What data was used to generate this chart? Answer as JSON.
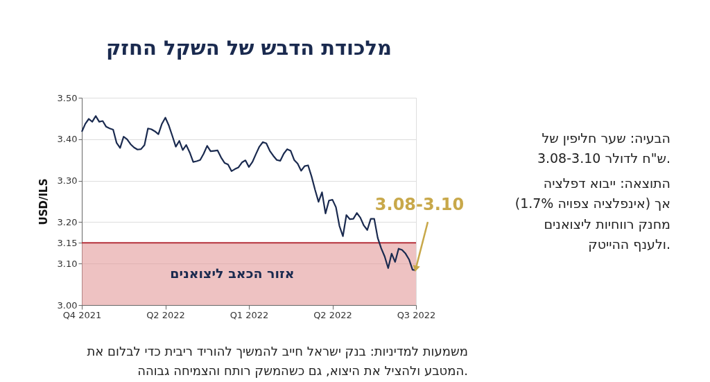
{
  "chart_data": {
    "type": "line",
    "title": "מלכודת הדבש של השקל החזק",
    "ylabel": "USD/ILS",
    "categories": [
      "Q4 2021",
      null,
      null,
      null,
      null,
      null,
      null,
      null,
      null,
      null,
      null,
      null,
      null,
      null,
      null,
      null,
      null,
      null,
      null,
      null,
      null,
      null,
      null,
      null,
      "Q2 2022",
      null,
      null,
      null,
      null,
      null,
      null,
      null,
      null,
      null,
      null,
      null,
      null,
      null,
      null,
      null,
      null,
      null,
      null,
      null,
      null,
      null,
      null,
      null,
      "Q1 2022",
      null,
      null,
      null,
      null,
      null,
      null,
      null,
      null,
      null,
      null,
      null,
      null,
      null,
      null,
      null,
      null,
      null,
      null,
      null,
      null,
      null,
      null,
      null,
      "Q2 2022",
      null,
      null,
      null,
      null,
      null,
      null,
      null,
      null,
      null,
      null,
      null,
      null,
      null,
      null,
      null,
      null,
      null,
      null,
      null,
      null,
      null,
      null,
      null,
      "Q3 2022"
    ],
    "series": [
      {
        "color": "#1a2a4f",
        "values": [
          3.418,
          3.437,
          3.449,
          3.442,
          3.456,
          3.442,
          3.444,
          3.43,
          3.426,
          3.423,
          3.391,
          3.379,
          3.406,
          3.4,
          3.388,
          3.38,
          3.375,
          3.376,
          3.386,
          3.426,
          3.424,
          3.419,
          3.412,
          3.437,
          3.452,
          3.433,
          3.408,
          3.382,
          3.396,
          3.374,
          3.386,
          3.368,
          3.345,
          3.347,
          3.35,
          3.365,
          3.384,
          3.371,
          3.372,
          3.373,
          3.356,
          3.343,
          3.339,
          3.323,
          3.328,
          3.332,
          3.344,
          3.349,
          3.333,
          3.345,
          3.364,
          3.382,
          3.393,
          3.39,
          3.372,
          3.36,
          3.35,
          3.348,
          3.365,
          3.376,
          3.372,
          3.35,
          3.341,
          3.324,
          3.335,
          3.337,
          3.31,
          3.278,
          3.249,
          3.272,
          3.221,
          3.252,
          3.254,
          3.236,
          3.191,
          3.166,
          3.217,
          3.207,
          3.208,
          3.222,
          3.211,
          3.192,
          3.181,
          3.208,
          3.208,
          3.162,
          3.137,
          3.117,
          3.089,
          3.124,
          3.104,
          3.136,
          3.133,
          3.124,
          3.11,
          3.085,
          3.084
        ]
      }
    ],
    "ylim": [
      3.0,
      3.5
    ],
    "yticks": [
      {
        "value": 3.0,
        "label": "3.00"
      },
      {
        "value": 3.1,
        "label": "3.10"
      },
      {
        "value": 3.15,
        "label": "3.15"
      },
      {
        "value": 3.2,
        "label": "3.20"
      },
      {
        "value": 3.3,
        "label": "3.30"
      },
      {
        "value": 3.4,
        "label": "3.40"
      },
      {
        "value": 3.5,
        "label": "3.50"
      }
    ],
    "grid": "y",
    "line_style": "solid",
    "bands": [
      {
        "axis": "y",
        "from": 3.0,
        "to": 3.15,
        "label": "אזור הכאב ליצואנים",
        "color": "#e39a9a"
      }
    ],
    "ref_lines": [
      {
        "axis": "y",
        "value": 3.15,
        "color": "#b5303a"
      }
    ],
    "annotations": [
      {
        "text": "3.08-3.10",
        "x": "Q3 2022",
        "y": 3.09
      },
      "הבעיה: שער חליפין של 3.08-3.10 ש\"ח לדולר.",
      "התוצאה: ייבוא דפלציה (אינפלציה צפויה 1.7%) אך מחנק רווחיות ליצואנים ולענף ההייטק.",
      "משמעות למדיניות: בנק ישראל חייב להמשיך להוריד ריבית כדי לבלום את המטבע ולהציל את היצוא, גם כשהמשק רותח והצמיחה גבוהה."
    ]
  }
}
